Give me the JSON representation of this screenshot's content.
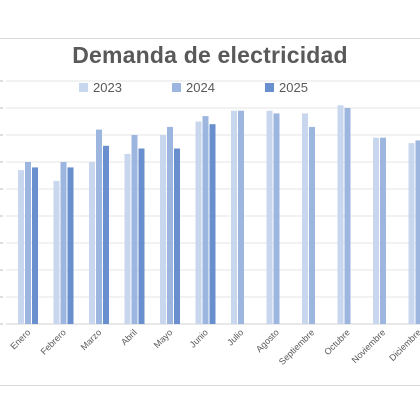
{
  "chart_data": {
    "type": "bar",
    "title": "Demanda de electricidad",
    "xlabel": "",
    "ylabel": "",
    "categories": [
      "Enero",
      "Febrero",
      "Marzo",
      "Abril",
      "Mayo",
      "Junio",
      "Julio",
      "Agosto",
      "Septiembre",
      "Octubre",
      "Noviembre",
      "Diciembre"
    ],
    "series": [
      {
        "name": "2023",
        "color": "#c9d7ee",
        "values": [
          5.7,
          5.3,
          6.0,
          6.3,
          7.0,
          7.5,
          7.9,
          7.9,
          7.8,
          8.1,
          6.9,
          6.7
        ]
      },
      {
        "name": "2024",
        "color": "#9db6e0",
        "values": [
          6.0,
          6.0,
          7.2,
          7.0,
          7.3,
          7.7,
          7.9,
          7.8,
          7.3,
          8.0,
          6.9,
          6.8
        ]
      },
      {
        "name": "2025",
        "color": "#6a8fcf",
        "values": [
          5.8,
          5.8,
          6.6,
          6.5,
          6.5,
          7.4,
          null,
          null,
          null,
          null,
          null,
          null
        ]
      }
    ],
    "ylim": [
      0,
      9
    ],
    "grid": true,
    "legend": "top"
  }
}
